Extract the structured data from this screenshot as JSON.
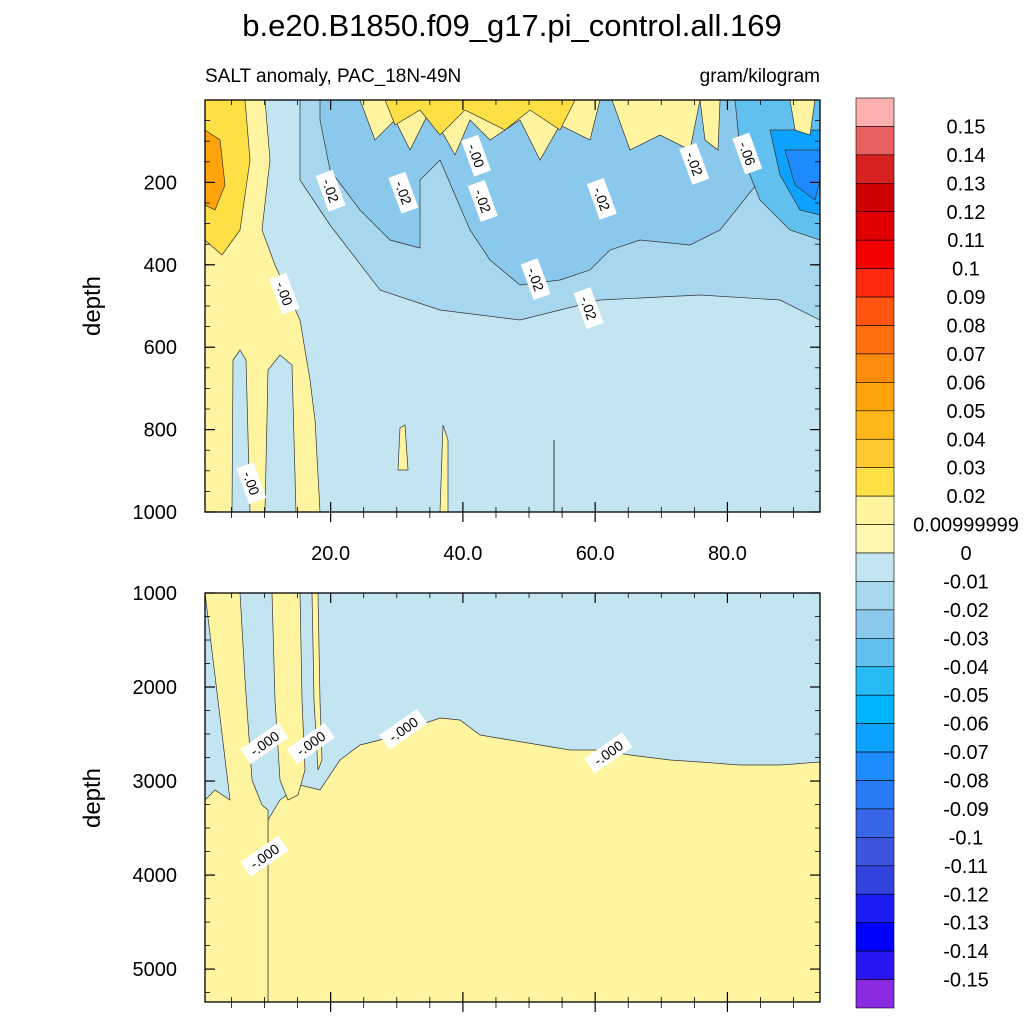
{
  "title": "b.e20.B1850.f09_g17.pi_control.all.169",
  "subtitle_left": "SALT anomaly, PAC_18N-49N",
  "subtitle_right": "gram/kilogram",
  "chart_data": [
    {
      "type": "contour",
      "panel": "upper",
      "ylabel": "depth",
      "xlabel": "",
      "xlim": [
        1,
        94
      ],
      "ylim": [
        0,
        1000
      ],
      "y_reversed": true,
      "x_ticks": [
        20,
        40,
        60,
        80
      ],
      "x_tick_labels": [
        "20.0",
        "40.0",
        "60.0",
        "80.0"
      ],
      "y_ticks": [
        200,
        400,
        600,
        800,
        1000
      ],
      "y_tick_labels": [
        "200",
        "400",
        "600",
        "800",
        "1000"
      ],
      "contour_labels": [
        {
          "text": "-.02",
          "x": 20,
          "y": 220
        },
        {
          "text": "-.02",
          "x": 31,
          "y": 225
        },
        {
          "text": "-.00",
          "x": 42,
          "y": 135
        },
        {
          "text": "-.02",
          "x": 43,
          "y": 245
        },
        {
          "text": "-.02",
          "x": 61,
          "y": 240
        },
        {
          "text": "-.02",
          "x": 75,
          "y": 155
        },
        {
          "text": "-.06",
          "x": 83,
          "y": 130
        },
        {
          "text": "-.02",
          "x": 51,
          "y": 435
        },
        {
          "text": "-.02",
          "x": 59,
          "y": 505
        },
        {
          "text": "-.00",
          "x": 13,
          "y": 470
        },
        {
          "text": "-.00",
          "x": 8,
          "y": 930
        }
      ]
    },
    {
      "type": "contour",
      "panel": "lower",
      "ylabel": "depth",
      "xlabel": "",
      "xlim": [
        1,
        94
      ],
      "ylim": [
        1000,
        5350
      ],
      "y_reversed": true,
      "y_ticks": [
        1000,
        2000,
        3000,
        4000,
        5000
      ],
      "y_tick_labels": [
        "1000",
        "2000",
        "3000",
        "4000",
        "5000"
      ],
      "contour_labels": [
        {
          "text": "-.000",
          "x": 10,
          "y": 2600
        },
        {
          "text": "-.000",
          "x": 17,
          "y": 2600
        },
        {
          "text": "-.000",
          "x": 31,
          "y": 2450
        },
        {
          "text": "-.000",
          "x": 62,
          "y": 2700
        },
        {
          "text": "-.000",
          "x": 10,
          "y": 3800
        }
      ]
    }
  ],
  "colorbar": {
    "labels": [
      "0.15",
      "0.14",
      "0.13",
      "0.12",
      "0.11",
      "0.1",
      "0.09",
      "0.08",
      "0.07",
      "0.06",
      "0.05",
      "0.04",
      "0.03",
      "0.02",
      "0.00999999",
      "0",
      "-0.01",
      "-0.02",
      "-0.03",
      "-0.04",
      "-0.05",
      "-0.06",
      "-0.07",
      "-0.08",
      "-0.09",
      "-0.1",
      "-0.11",
      "-0.12",
      "-0.13",
      "-0.14",
      "-0.15"
    ],
    "colors": [
      "#fdb0b0",
      "#e86161",
      "#d82222",
      "#cf0000",
      "#e00000",
      "#f50000",
      "#ff2a10",
      "#ff5511",
      "#ff6f0f",
      "#ff8b0c",
      "#ffa30a",
      "#ffb71a",
      "#ffc933",
      "#ffdf46",
      "#fff5a0",
      "#fff8b0",
      "#c3e5f2",
      "#a6d7ef",
      "#8ac8ec",
      "#62c0ef",
      "#28baf5",
      "#00b4ff",
      "#0da2ff",
      "#1e8cff",
      "#2a7af5",
      "#3866e8",
      "#3d55dd",
      "#3242dc",
      "#1c1cf5",
      "#0000ff",
      "#2a16f0",
      "#8a2be2"
    ]
  }
}
